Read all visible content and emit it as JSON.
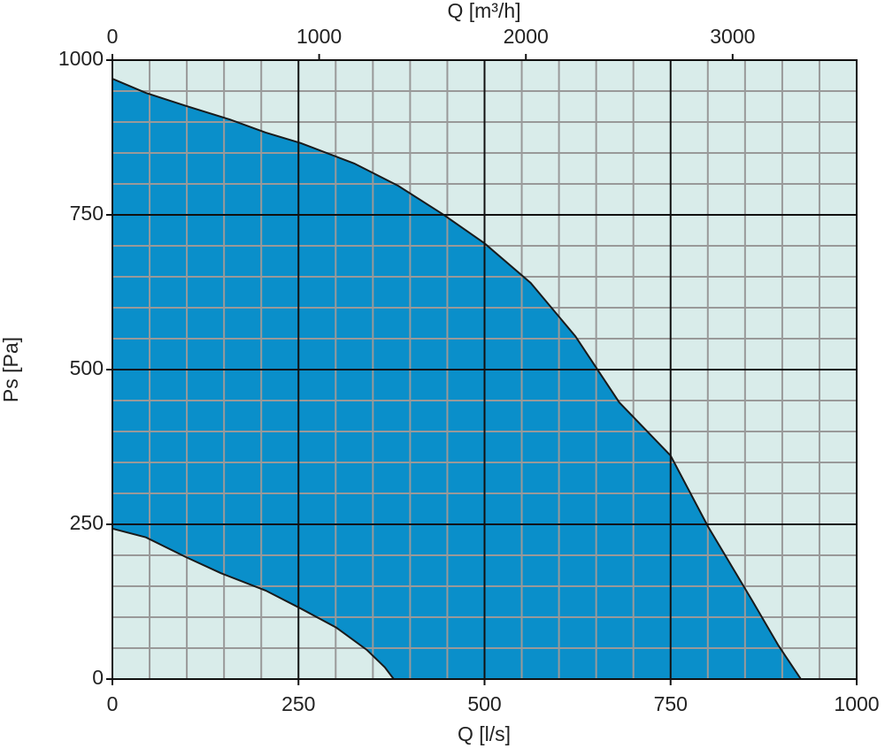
{
  "chart_data": {
    "type": "area",
    "xlabel": "Q [l/s]",
    "x2label": "Q [m³/h]",
    "ylabel": "Ps [Pa]",
    "xlim": [
      0,
      1000
    ],
    "xticks": [
      0,
      250,
      500,
      750,
      1000
    ],
    "x2lim": [
      0,
      3600
    ],
    "x2ticks": [
      0,
      1000,
      2000,
      3000
    ],
    "ylim": [
      0,
      1000
    ],
    "yticks": [
      0,
      250,
      500,
      750,
      1000
    ],
    "xminorticks": [
      50,
      100,
      150,
      200,
      300,
      350,
      400,
      450,
      550,
      600,
      650,
      700,
      800,
      850,
      900,
      950
    ],
    "yminorticks": [
      50,
      100,
      150,
      200,
      300,
      350,
      400,
      450,
      550,
      600,
      650,
      700,
      800,
      850,
      900,
      950
    ],
    "grid": true,
    "background_color": "#d9ecea",
    "fill_color": "#0a8fca",
    "series": [
      {
        "x": [
          0,
          45,
          99,
          158,
          206,
          253,
          325,
          384,
          444,
          500,
          562,
          622,
          681,
          750,
          800,
          860,
          895,
          925
        ],
        "values": [
          970,
          947,
          926,
          904,
          883,
          866,
          833,
          797,
          751,
          704,
          640,
          554,
          447,
          361,
          247,
          126,
          54,
          0
        ]
      },
      {
        "x": [
          0,
          45,
          99,
          146,
          206,
          253,
          301,
          342,
          366,
          378
        ],
        "values": [
          243,
          229,
          197,
          171,
          143,
          114,
          83,
          47,
          19,
          0
        ]
      }
    ]
  }
}
